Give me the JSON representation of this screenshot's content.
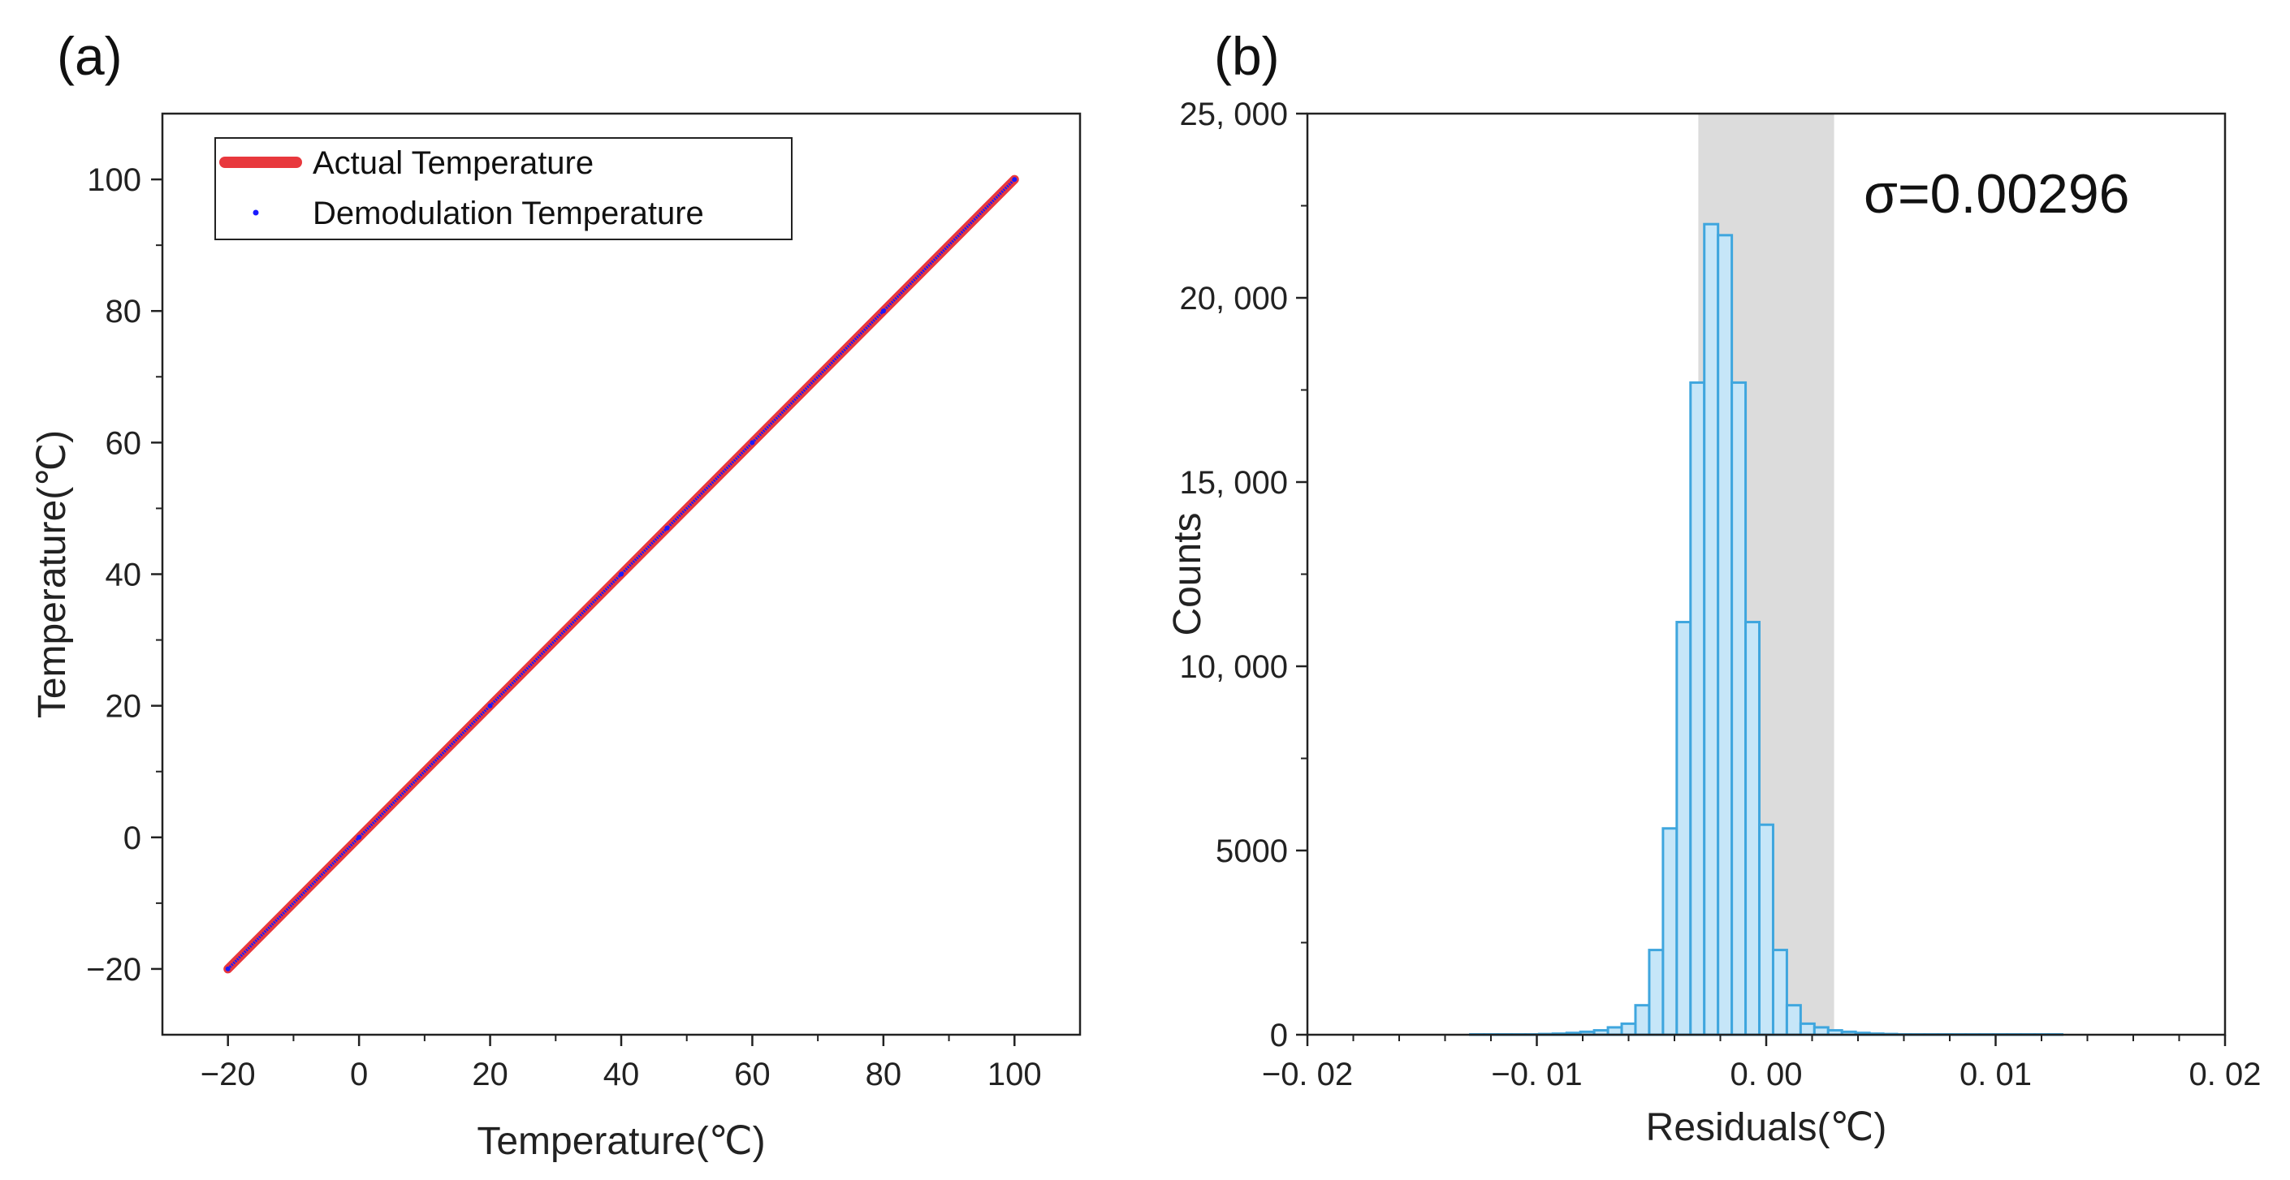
{
  "figure": {
    "panel_a_label": "(a)",
    "panel_b_label": "(b)"
  },
  "chart_data": [
    {
      "id": "a",
      "type": "line",
      "title": "",
      "xlabel": "Temperature(℃)",
      "ylabel": "Temperature(℃)",
      "xlim": [
        -30,
        110
      ],
      "ylim": [
        -30,
        110
      ],
      "xticks": [
        -20,
        0,
        20,
        40,
        60,
        80,
        100
      ],
      "xtick_labels": [
        "−20",
        "0",
        "20",
        "40",
        "60",
        "80",
        "100"
      ],
      "yticks": [
        -20,
        0,
        20,
        40,
        60,
        80,
        100
      ],
      "ytick_labels": [
        "−20",
        "0",
        "20",
        "40",
        "60",
        "80",
        "100"
      ],
      "legend_position": "top-left",
      "series": [
        {
          "name": "Actual Temperature",
          "style": "thick line",
          "color": "#e8383d",
          "x": [
            -20,
            100
          ],
          "y": [
            -20,
            100
          ]
        },
        {
          "name": "Demodulation Temperature",
          "style": "dots",
          "color": "#1a1aff",
          "x": [
            -20,
            0,
            20,
            40,
            47,
            60,
            80,
            100
          ],
          "y": [
            -20,
            0,
            20,
            40,
            47,
            60,
            80,
            100
          ]
        }
      ]
    },
    {
      "id": "b",
      "type": "bar",
      "title": "",
      "xlabel": "Residuals(℃)",
      "ylabel": "Counts",
      "xlim": [
        -0.02,
        0.02
      ],
      "ylim": [
        0,
        25000
      ],
      "xticks": [
        -0.02,
        -0.01,
        0.0,
        0.01,
        0.02
      ],
      "xtick_labels": [
        "−0. 02",
        "−0. 01",
        "0. 00",
        "0. 01",
        "0. 02"
      ],
      "yticks": [
        0,
        5000,
        10000,
        15000,
        20000,
        25000
      ],
      "ytick_labels": [
        "0",
        "5000",
        "10, 000",
        "15, 000",
        "20, 000",
        "25, 000"
      ],
      "annotation": "σ=0.00296",
      "sigma_band": [
        -0.00296,
        0.00296
      ],
      "bin_width": 0.0006,
      "bin_centers": [
        -0.0126,
        -0.012,
        -0.0114,
        -0.0108,
        -0.0102,
        -0.0096,
        -0.009,
        -0.0084,
        -0.0078,
        -0.0072,
        -0.0066,
        -0.006,
        -0.0054,
        -0.0048,
        -0.0042,
        -0.0036,
        -0.003,
        -0.0024,
        -0.0018,
        -0.0012,
        -0.0006,
        0.0,
        0.0006,
        0.0012,
        0.0018,
        0.0024,
        0.003,
        0.0036,
        0.0042,
        0.0048,
        0.0054,
        0.006,
        0.0066,
        0.0072,
        0.0078,
        0.0084,
        0.009,
        0.0096,
        0.0102,
        0.0108,
        0.0114,
        0.012,
        0.0126
      ],
      "values": [
        10,
        10,
        10,
        10,
        10,
        20,
        30,
        50,
        80,
        120,
        200,
        300,
        800,
        2300,
        5600,
        11200,
        17700,
        22000,
        21700,
        17700,
        11200,
        5700,
        2300,
        800,
        300,
        200,
        120,
        80,
        50,
        30,
        20,
        10,
        10,
        10,
        10,
        10,
        10,
        10,
        10,
        10,
        10,
        10,
        10
      ],
      "bar_fill": "#c6e6f8",
      "bar_edge": "#3fa6de"
    }
  ]
}
